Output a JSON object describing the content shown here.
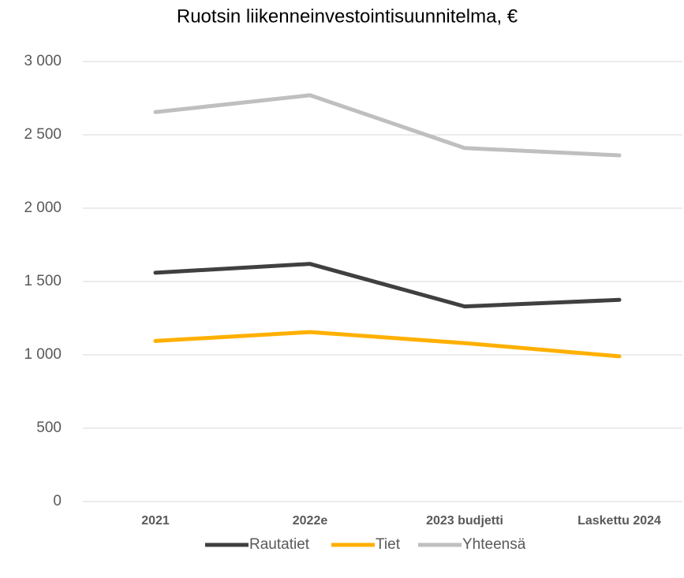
{
  "chart_data": {
    "type": "line",
    "title": "Ruotsin liikenneinvestointisuunnitelma, €",
    "categories": [
      "2021",
      "2022e",
      "2023 budjetti",
      "Laskettu 2024"
    ],
    "series": [
      {
        "name": "Rautatiet",
        "color": "#404040",
        "values": [
          1560,
          1620,
          1330,
          1375
        ]
      },
      {
        "name": "Tiet",
        "color": "#ffb000",
        "values": [
          1095,
          1155,
          1080,
          990
        ]
      },
      {
        "name": "Yhteensä",
        "color": "#bfbfbf",
        "values": [
          2655,
          2770,
          2410,
          2360
        ]
      }
    ],
    "ylim": [
      0,
      3000
    ],
    "yticks": [
      0,
      500,
      {
        "value": 1000,
        "label": "1 000"
      },
      {
        "value": 1500,
        "label": "1 500"
      },
      {
        "value": 2000,
        "label": "2 000"
      },
      {
        "value": 2500,
        "label": "2 500"
      },
      {
        "value": 3000,
        "label": "3 000"
      }
    ],
    "grid": true,
    "legend": "bottom"
  }
}
